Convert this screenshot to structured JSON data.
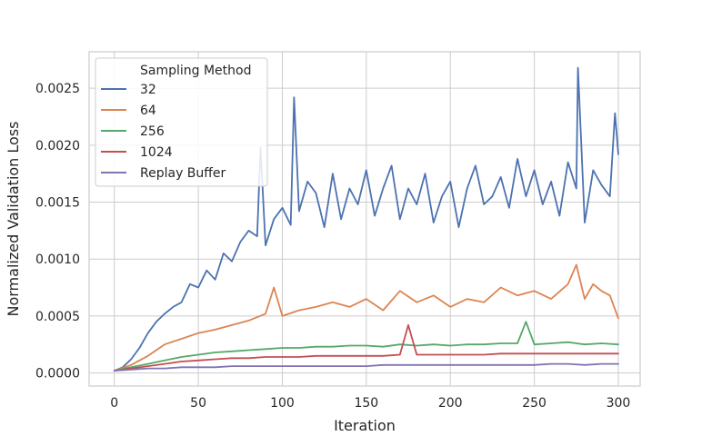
{
  "chart_data": {
    "type": "line",
    "xlabel": "Iteration",
    "ylabel": "Normalized Validation Loss",
    "xlim": [
      -15,
      313
    ],
    "ylim": [
      -0.000115,
      0.00282
    ],
    "xticks": [
      0,
      50,
      100,
      150,
      200,
      250,
      300
    ],
    "yticks": [
      0.0,
      0.0005,
      0.001,
      0.0015,
      0.002,
      0.0025
    ],
    "xtick_labels": [
      "0",
      "50",
      "100",
      "150",
      "200",
      "250",
      "300"
    ],
    "ytick_labels": [
      "0.0000",
      "0.0005",
      "0.0010",
      "0.0015",
      "0.0020",
      "0.0025"
    ],
    "grid": true,
    "legend": {
      "title": "Sampling Method",
      "placement": "top-left"
    },
    "series": [
      {
        "name": "32",
        "color": "#4c72b0",
        "x": [
          0,
          5,
          10,
          15,
          20,
          25,
          30,
          35,
          40,
          45,
          50,
          55,
          60,
          65,
          70,
          75,
          80,
          85,
          87,
          90,
          95,
          100,
          105,
          107,
          110,
          115,
          120,
          125,
          130,
          135,
          140,
          145,
          150,
          155,
          160,
          165,
          170,
          175,
          180,
          185,
          190,
          195,
          200,
          205,
          210,
          215,
          220,
          225,
          230,
          235,
          240,
          245,
          250,
          255,
          260,
          265,
          270,
          275,
          276,
          280,
          285,
          290,
          295,
          298,
          300
        ],
        "y": [
          2e-05,
          5e-05,
          0.00012,
          0.00022,
          0.00035,
          0.00045,
          0.00052,
          0.00058,
          0.00062,
          0.00078,
          0.00075,
          0.0009,
          0.00082,
          0.00105,
          0.00098,
          0.00115,
          0.00125,
          0.0012,
          0.00198,
          0.00112,
          0.00135,
          0.00145,
          0.0013,
          0.00242,
          0.00142,
          0.00168,
          0.00158,
          0.00128,
          0.00175,
          0.00135,
          0.00162,
          0.00148,
          0.00178,
          0.00138,
          0.00162,
          0.00182,
          0.00135,
          0.00162,
          0.00148,
          0.00175,
          0.00132,
          0.00155,
          0.00168,
          0.00128,
          0.00162,
          0.00182,
          0.00148,
          0.00155,
          0.00172,
          0.00145,
          0.00188,
          0.00155,
          0.00178,
          0.00148,
          0.00168,
          0.00138,
          0.00185,
          0.00162,
          0.00268,
          0.00132,
          0.00178,
          0.00165,
          0.00155,
          0.00228,
          0.00192
        ]
      },
      {
        "name": "64",
        "color": "#dd8452",
        "x": [
          0,
          10,
          20,
          25,
          30,
          40,
          50,
          60,
          70,
          80,
          90,
          95,
          100,
          110,
          120,
          130,
          140,
          150,
          160,
          170,
          180,
          190,
          200,
          210,
          220,
          230,
          240,
          250,
          260,
          270,
          275,
          280,
          285,
          290,
          295,
          300
        ],
        "y": [
          2e-05,
          7e-05,
          0.00015,
          0.0002,
          0.00025,
          0.0003,
          0.00035,
          0.00038,
          0.00042,
          0.00046,
          0.00052,
          0.00075,
          0.0005,
          0.00055,
          0.00058,
          0.00062,
          0.00058,
          0.00065,
          0.00055,
          0.00072,
          0.00062,
          0.00068,
          0.00058,
          0.00065,
          0.00062,
          0.00075,
          0.00068,
          0.00072,
          0.00065,
          0.00078,
          0.00095,
          0.00065,
          0.00078,
          0.00072,
          0.00068,
          0.00048
        ]
      },
      {
        "name": "256",
        "color": "#55a868",
        "x": [
          0,
          10,
          20,
          30,
          40,
          50,
          60,
          70,
          80,
          90,
          100,
          110,
          120,
          130,
          140,
          150,
          160,
          170,
          180,
          190,
          200,
          210,
          220,
          230,
          240,
          245,
          250,
          260,
          270,
          280,
          290,
          300
        ],
        "y": [
          2e-05,
          5e-05,
          8e-05,
          0.00011,
          0.00014,
          0.00016,
          0.00018,
          0.00019,
          0.0002,
          0.00021,
          0.00022,
          0.00022,
          0.00023,
          0.00023,
          0.00024,
          0.00024,
          0.00023,
          0.00025,
          0.00024,
          0.00025,
          0.00024,
          0.00025,
          0.00025,
          0.00026,
          0.00026,
          0.00045,
          0.00025,
          0.00026,
          0.00027,
          0.00025,
          0.00026,
          0.00025
        ]
      },
      {
        "name": "1024",
        "color": "#c44e52",
        "x": [
          0,
          10,
          20,
          30,
          40,
          50,
          60,
          70,
          80,
          90,
          100,
          110,
          120,
          130,
          140,
          150,
          160,
          170,
          175,
          180,
          190,
          200,
          210,
          220,
          230,
          240,
          250,
          260,
          270,
          280,
          290,
          300
        ],
        "y": [
          2e-05,
          4e-05,
          6e-05,
          8e-05,
          0.0001,
          0.00011,
          0.00012,
          0.00013,
          0.00013,
          0.00014,
          0.00014,
          0.00014,
          0.00015,
          0.00015,
          0.00015,
          0.00015,
          0.00015,
          0.00016,
          0.00042,
          0.00016,
          0.00016,
          0.00016,
          0.00016,
          0.00016,
          0.00017,
          0.00017,
          0.00017,
          0.00017,
          0.00017,
          0.00017,
          0.00017,
          0.00017
        ]
      },
      {
        "name": "Replay Buffer",
        "color": "#8172b3",
        "x": [
          0,
          10,
          20,
          30,
          40,
          50,
          60,
          70,
          80,
          90,
          100,
          110,
          120,
          130,
          140,
          150,
          160,
          170,
          180,
          190,
          200,
          210,
          220,
          230,
          240,
          250,
          260,
          270,
          280,
          290,
          300
        ],
        "y": [
          2e-05,
          3e-05,
          4e-05,
          4e-05,
          5e-05,
          5e-05,
          5e-05,
          6e-05,
          6e-05,
          6e-05,
          6e-05,
          6e-05,
          6e-05,
          6e-05,
          6e-05,
          6e-05,
          7e-05,
          7e-05,
          7e-05,
          7e-05,
          7e-05,
          7e-05,
          7e-05,
          7e-05,
          7e-05,
          7e-05,
          8e-05,
          8e-05,
          7e-05,
          8e-05,
          8e-05
        ]
      }
    ]
  }
}
